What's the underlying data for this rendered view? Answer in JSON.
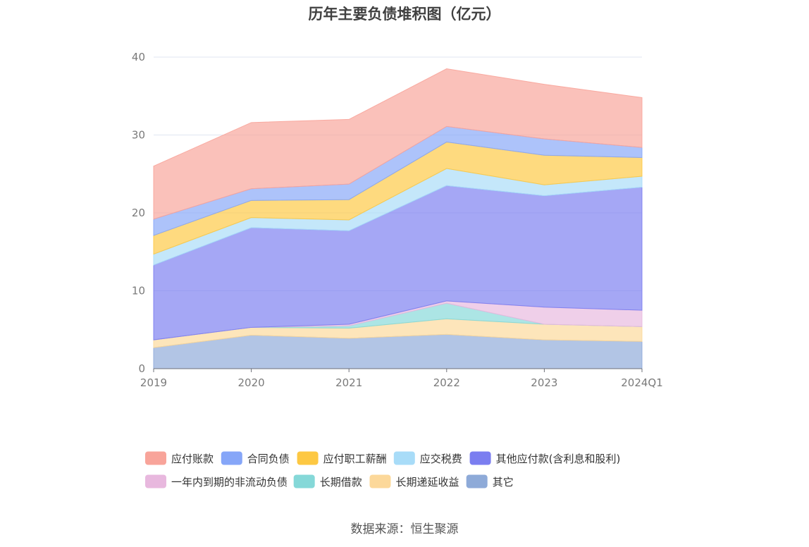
{
  "chart_data": {
    "type": "area",
    "stacked": true,
    "title": "历年主要负债堆积图（亿元）",
    "categories": [
      "2019",
      "2020",
      "2021",
      "2022",
      "2023",
      "2024Q1"
    ],
    "ylim": [
      0,
      40
    ],
    "yticks": [
      0,
      10,
      20,
      30,
      40
    ],
    "grid": true,
    "legend_position": "bottom",
    "series": [
      {
        "name": "其它",
        "color": "#8eaad8",
        "values": [
          2.7,
          4.3,
          3.9,
          4.4,
          3.7,
          3.5
        ]
      },
      {
        "name": "长期递延收益",
        "color": "#fcd89a",
        "values": [
          1.0,
          1.0,
          1.3,
          2.0,
          2.0,
          1.9
        ]
      },
      {
        "name": "长期借款",
        "color": "#85d8d8",
        "values": [
          0.0,
          0.0,
          0.3,
          2.0,
          0.0,
          0.0
        ]
      },
      {
        "name": "一年内到期的非流动负债",
        "color": "#e8b8de",
        "values": [
          0.0,
          0.0,
          0.2,
          0.3,
          2.2,
          2.1
        ]
      },
      {
        "name": "其他应付款(含利息和股利)",
        "color": "#7b7ef0",
        "values": [
          9.6,
          12.8,
          12.0,
          14.8,
          14.3,
          15.8
        ]
      },
      {
        "name": "应交税费",
        "color": "#a8dcf8",
        "values": [
          1.4,
          1.3,
          1.4,
          2.2,
          1.4,
          1.4
        ]
      },
      {
        "name": "应付职工薪酬",
        "color": "#fdc843",
        "values": [
          2.4,
          2.2,
          2.6,
          3.4,
          3.8,
          2.4
        ]
      },
      {
        "name": "合同负债",
        "color": "#86a6f8",
        "values": [
          2.1,
          1.5,
          2.0,
          2.0,
          2.1,
          1.3
        ]
      },
      {
        "name": "应付账款",
        "color": "#f8a49a",
        "values": [
          6.8,
          8.5,
          8.3,
          7.4,
          7.0,
          6.4
        ]
      }
    ],
    "legend_order": [
      "应付账款",
      "合同负债",
      "应付职工薪酬",
      "应交税费",
      "其他应付款(含利息和股利)",
      "一年内到期的非流动负债",
      "长期借款",
      "长期递延收益",
      "其它"
    ]
  },
  "source": "数据来源：恒生聚源"
}
